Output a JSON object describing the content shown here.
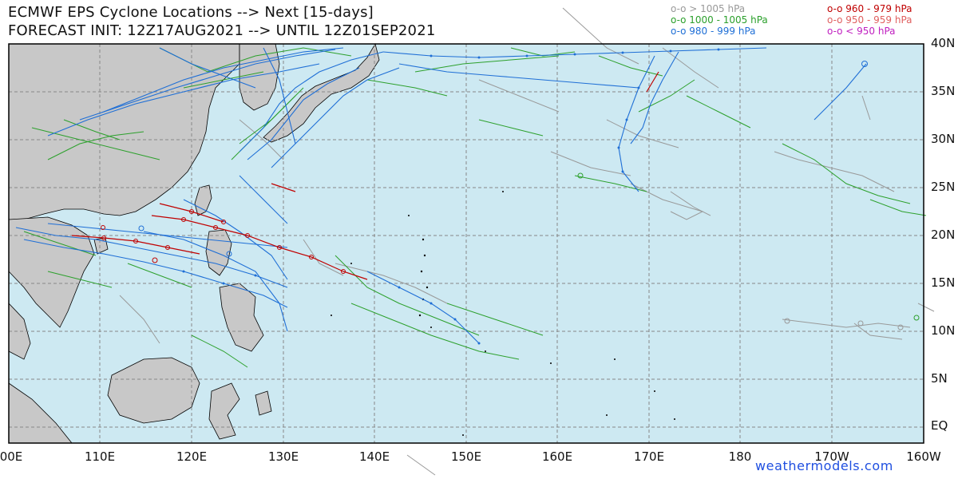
{
  "header": {
    "title": "ECMWF EPS Cyclone Locations --> Next [15-days]",
    "subtitle": "FORECAST INIT: 12Z17AUG2021 --> UNTIL 12Z01SEP2021"
  },
  "legend": {
    "left": [
      {
        "label": "o-o > 1005 hPa",
        "color": "#999999"
      },
      {
        "label": "o-o 1000 - 1005 hPa",
        "color": "#2ca02c"
      },
      {
        "label": "o-o 980 - 999 hPa",
        "color": "#1f6fd6"
      }
    ],
    "right": [
      {
        "label": "o-o 960 - 979 hPa",
        "color": "#c00000"
      },
      {
        "label": "o-o 950 - 959 hPa",
        "color": "#e06060"
      },
      {
        "label": "o-o < 950 hPa",
        "color": "#c020c0"
      }
    ]
  },
  "axes": {
    "lat_labels": [
      "40N",
      "35N",
      "30N",
      "25N",
      "20N",
      "15N",
      "10N",
      "5N",
      "EQ"
    ],
    "lon_labels": [
      "00E",
      "110E",
      "120E",
      "130E",
      "140E",
      "150E",
      "160E",
      "170E",
      "180",
      "170W",
      "160W"
    ]
  },
  "colors": {
    "ocean": "#cde9f2",
    "land": "#c8c8c8",
    "coast": "#000000",
    "grid": "#888888"
  },
  "credit": "weathermodels.com"
}
